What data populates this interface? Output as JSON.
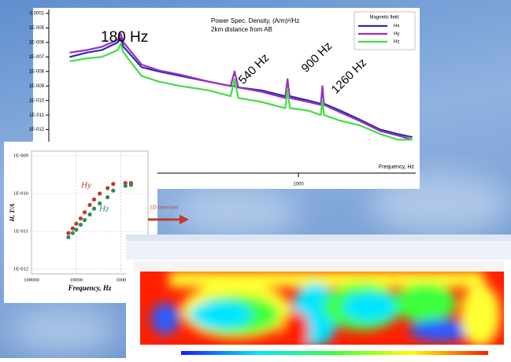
{
  "chart_data": [
    {
      "type": "line",
      "title": "Power Spec. Density, (A/m)²/Hz",
      "subtitle": "2km distance from AB",
      "x_label": "Frequency, Hz",
      "x_log": true,
      "y_log": true,
      "legend": "upper right",
      "legend_title": "Magnetic field",
      "annotations": [
        "180 Hz",
        "540 Hz",
        "900 Hz",
        "1260 Hz"
      ],
      "xlim": [
        90,
        3100
      ],
      "xticks": [
        1000
      ],
      "ylim": [
        1e-15,
        0.0001
      ],
      "yticks": [
        0.0001,
        {
          "value": 1e-05,
          "label": "1E-005"
        },
        {
          "value": 1e-06,
          "label": "1E-006"
        },
        {
          "value": 1e-07,
          "label": "1E-007"
        },
        {
          "value": 1e-08,
          "label": "1E-008"
        },
        {
          "value": 1e-09,
          "label": "1E-009"
        },
        {
          "value": 1e-10,
          "label": "1E-010"
        },
        {
          "value": 1e-11,
          "label": "1E-011"
        },
        {
          "value": 1e-12,
          "label": "1E-012"
        }
      ],
      "x": [
        110,
        130,
        150,
        175,
        180,
        185,
        220,
        260,
        320,
        420,
        520,
        540,
        560,
        700,
        880,
        900,
        920,
        1100,
        1240,
        1260,
        1280,
        1500,
        1800,
        2200,
        2600,
        3000
      ],
      "series": [
        {
          "name": "Hx",
          "color": "#2b2fa8",
          "values": [
            1e-07,
            2e-07,
            3e-07,
            1e-06,
            2e-06,
            5e-07,
            2e-08,
            1e-08,
            5e-09,
            2e-09,
            1e-09,
            1e-09,
            8e-10,
            5e-10,
            2e-10,
            2e-10,
            2e-10,
            1e-10,
            6e-11,
            6e-11,
            6e-11,
            2e-11,
            5e-12,
            1e-12,
            5e-13,
            3e-13
          ]
        },
        {
          "name": "Hy",
          "color": "#9b2fbf",
          "values": [
            2e-07,
            3e-07,
            5e-07,
            1.5e-06,
            4e-06,
            1e-06,
            3e-08,
            1.2e-08,
            6e-09,
            2e-09,
            1e-09,
            1e-08,
            8e-10,
            4e-10,
            1.5e-10,
            3e-09,
            1.5e-10,
            8e-11,
            5e-11,
            1e-09,
            5e-11,
            1.5e-11,
            4e-12,
            8e-13,
            4e-13,
            2e-13
          ]
        },
        {
          "name": "Hz",
          "color": "#44dd44",
          "values": [
            5e-08,
            8e-08,
            1e-07,
            3e-07,
            8e-07,
            2e-07,
            5e-09,
            2e-09,
            1e-09,
            5e-10,
            2e-10,
            3e-09,
            1.5e-10,
            8e-11,
            3e-11,
            5e-10,
            3e-11,
            2e-11,
            1e-11,
            1e-10,
            1e-11,
            4e-12,
            2e-12,
            5e-13,
            2e-13,
            2e-13
          ]
        }
      ]
    },
    {
      "type": "scatter",
      "x_label": "Frequency, Hz",
      "y_label": "H, T/A",
      "x_log": true,
      "y_log": true,
      "grid": true,
      "annotations": [
        "1D inversion"
      ],
      "xlim": [
        100000,
        250
      ],
      "xticks": [
        100000,
        10000,
        1000
      ],
      "ylim": [
        1e-12,
        1e-09
      ],
      "yticks": [
        {
          "value": 1e-09,
          "label": "1E-009"
        },
        {
          "value": 1e-10,
          "label": "1E-010"
        },
        {
          "value": 1e-11,
          "label": "1E-011"
        },
        {
          "value": 1e-12,
          "label": "1E-012"
        }
      ],
      "series": [
        {
          "name": "Hy",
          "color": "#c0392b",
          "x": [
            15000,
            12000,
            10000,
            8000,
            6500,
            5000,
            4000,
            3000,
            2000,
            1500,
            800,
            600
          ],
          "values": [
            9e-12,
            1.2e-11,
            1.6e-11,
            2.2e-11,
            3.2e-11,
            5e-11,
            7e-11,
            1e-10,
            1.4e-10,
            1.8e-10,
            1.9e-10,
            1.9e-10
          ]
        },
        {
          "name": "Hz",
          "color": "#2e8b57",
          "x": [
            15000,
            12000,
            10000,
            8000,
            6500,
            5000,
            4000,
            3000,
            2000,
            1500,
            800,
            600
          ],
          "values": [
            7e-12,
            9e-12,
            1.1e-11,
            1.5e-11,
            2e-11,
            2.8e-11,
            4e-11,
            5.5e-11,
            8e-11,
            1.2e-10,
            1.6e-10,
            1.7e-10
          ]
        }
      ]
    }
  ]
}
